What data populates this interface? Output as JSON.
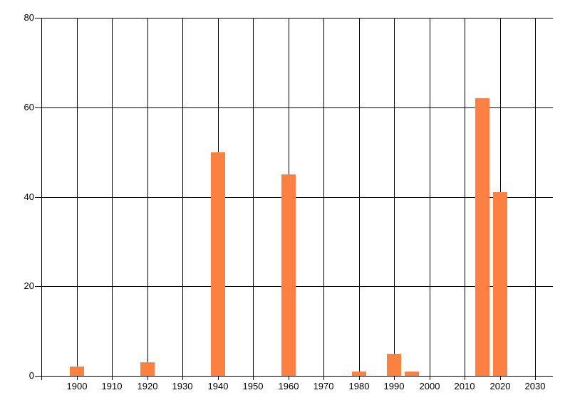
{
  "chart_data": {
    "type": "bar",
    "title": "",
    "xlabel": "",
    "ylabel": "",
    "x": [
      1900,
      1920,
      1940,
      1960,
      1980,
      1990,
      1995,
      2015,
      2020
    ],
    "values": [
      2,
      3,
      50,
      45,
      1,
      5,
      1,
      62,
      41
    ],
    "xlim": [
      1890,
      2035
    ],
    "ylim": [
      0,
      80
    ],
    "x_gridline_years": [
      1890,
      1900,
      1910,
      1920,
      1930,
      1940,
      1950,
      1960,
      1970,
      1980,
      1990,
      2000,
      2010,
      2020,
      2030
    ],
    "x_tick_years": [
      1900,
      1910,
      1920,
      1930,
      1940,
      1950,
      1960,
      1970,
      1980,
      1990,
      2000,
      2010,
      2020,
      2030
    ],
    "x_tick_labels": [
      "1900",
      "1910",
      "1920",
      "1930",
      "1940",
      "1950",
      "1960",
      "1970",
      "1980",
      "1990",
      "2000",
      "2010",
      "2020",
      "2030"
    ],
    "y_ticks": [
      0,
      20,
      40,
      60,
      80
    ],
    "y_tick_labels": [
      "0",
      "20",
      "40",
      "60",
      "80"
    ],
    "grid": true,
    "legend": false,
    "colors": {
      "bar": "#fc8140",
      "grid": "#000000",
      "label": "#000000",
      "background": "#ffffff"
    }
  }
}
